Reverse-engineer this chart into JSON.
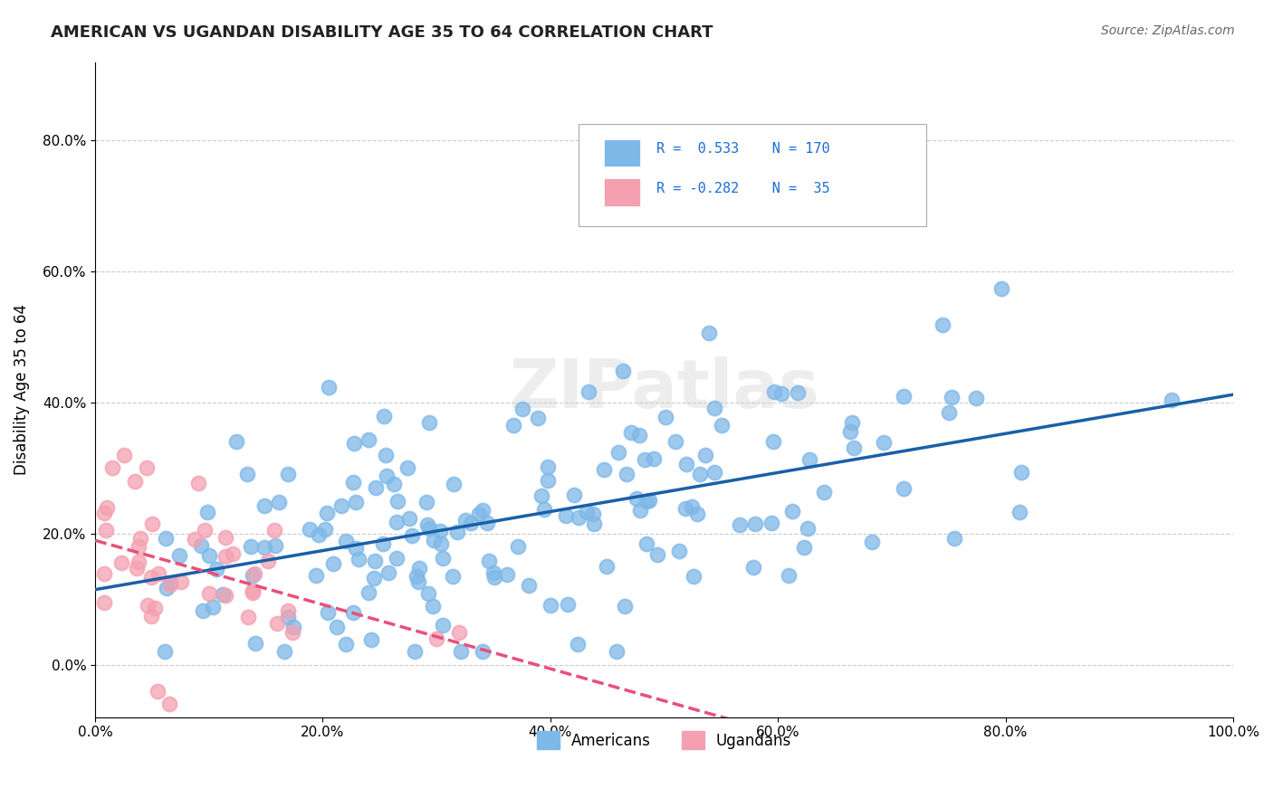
{
  "title": "AMERICAN VS UGANDAN DISABILITY AGE 35 TO 64 CORRELATION CHART",
  "source": "Source: ZipAtlas.com",
  "xlabel": "",
  "ylabel": "Disability Age 35 to 64",
  "xlim": [
    0.0,
    1.0
  ],
  "ylim": [
    -0.08,
    0.92
  ],
  "xticks": [
    0.0,
    0.2,
    0.4,
    0.6,
    0.8,
    1.0
  ],
  "xticklabels": [
    "0.0%",
    "20.0%",
    "40.0%",
    "60.0%",
    "80.0%",
    "100.0%"
  ],
  "yticks": [
    0.0,
    0.2,
    0.4,
    0.6,
    0.8
  ],
  "yticklabels": [
    "0.0%",
    "20.0%",
    "40.0%",
    "60.0%",
    "80.0%"
  ],
  "legend_r_american": "0.533",
  "legend_n_american": "170",
  "legend_r_ugandan": "-0.282",
  "legend_n_ugandan": "35",
  "american_color": "#7eb8e8",
  "ugandan_color": "#f4a0b0",
  "american_line_color": "#1a5fa8",
  "ugandan_line_color": "#e8507a",
  "watermark": "ZIPatlas",
  "background_color": "#ffffff",
  "grid_color": "#cccccc",
  "american_seed": 42,
  "ugandan_seed": 7,
  "american_n": 170,
  "ugandan_n": 35
}
